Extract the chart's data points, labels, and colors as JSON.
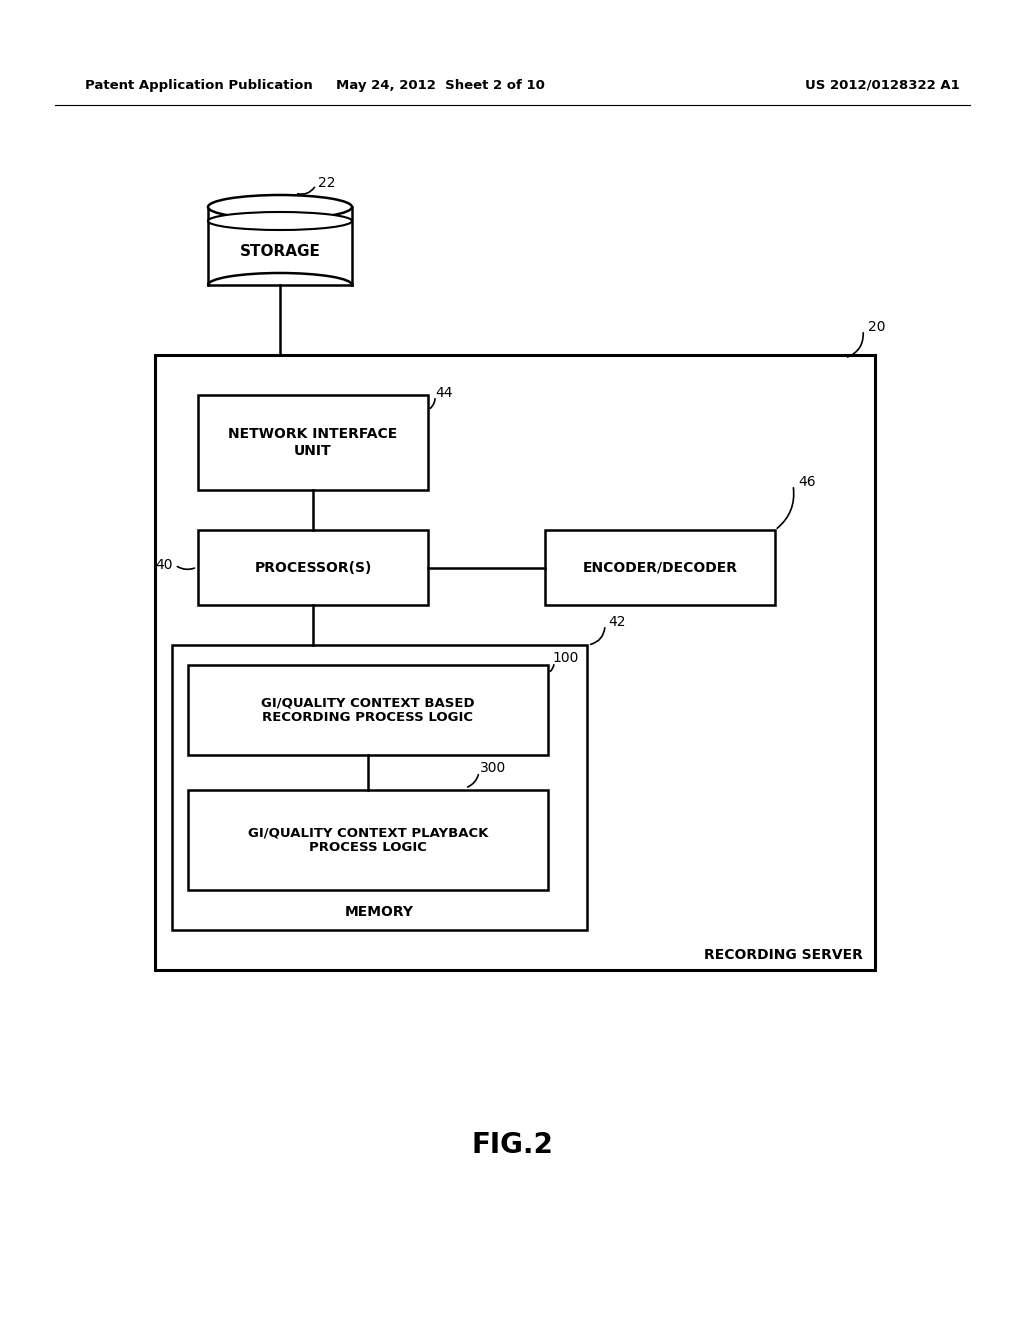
{
  "bg_color": "#ffffff",
  "header_left": "Patent Application Publication",
  "header_center": "May 24, 2012  Sheet 2 of 10",
  "header_right": "US 2012/0128322 A1",
  "fig_label": "FIG.2",
  "storage_label": "STORAGE",
  "storage_ref": "22",
  "network_box_label": "NETWORK INTERFACE\nUNIT",
  "network_ref": "44",
  "processor_box_label": "PROCESSOR(S)",
  "processor_ref": "40",
  "encoder_box_label": "ENCODER/DECODER",
  "encoder_ref": "46",
  "memory_label": "MEMORY",
  "memory_ref": "42",
  "logic100_label": "GI/QUALITY CONTEXT BASED\nRECORDING PROCESS LOGIC",
  "logic100_ref": "100",
  "logic300_label": "GI/QUALITY CONTEXT PLAYBACK\nPROCESS LOGIC",
  "logic300_ref": "300",
  "outer_label": "RECORDING SERVER",
  "outer_ref": "20"
}
